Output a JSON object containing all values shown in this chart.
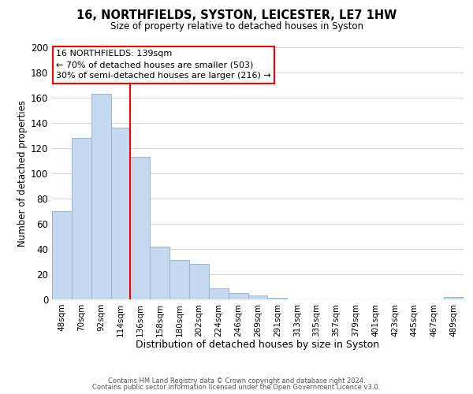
{
  "title": "16, NORTHFIELDS, SYSTON, LEICESTER, LE7 1HW",
  "subtitle": "Size of property relative to detached houses in Syston",
  "xlabel": "Distribution of detached houses by size in Syston",
  "ylabel": "Number of detached properties",
  "bar_labels": [
    "48sqm",
    "70sqm",
    "92sqm",
    "114sqm",
    "136sqm",
    "158sqm",
    "180sqm",
    "202sqm",
    "224sqm",
    "246sqm",
    "269sqm",
    "291sqm",
    "313sqm",
    "335sqm",
    "357sqm",
    "379sqm",
    "401sqm",
    "423sqm",
    "445sqm",
    "467sqm",
    "489sqm"
  ],
  "bar_heights": [
    70,
    128,
    163,
    136,
    113,
    42,
    31,
    28,
    9,
    5,
    3,
    1,
    0,
    0,
    0,
    0,
    0,
    0,
    0,
    0,
    2
  ],
  "bar_color": "#c5d9f0",
  "bar_edge_color": "#a0b8d8",
  "ylim": [
    0,
    200
  ],
  "yticks": [
    0,
    20,
    40,
    60,
    80,
    100,
    120,
    140,
    160,
    180,
    200
  ],
  "property_line_label": "16 NORTHFIELDS: 139sqm",
  "annotation_line1": "← 70% of detached houses are smaller (503)",
  "annotation_line2": "30% of semi-detached houses are larger (216) →",
  "footer1": "Contains HM Land Registry data © Crown copyright and database right 2024.",
  "footer2": "Contains public sector information licensed under the Open Government Licence v3.0.",
  "background_color": "#ffffff",
  "grid_color": "#d0d8e8"
}
